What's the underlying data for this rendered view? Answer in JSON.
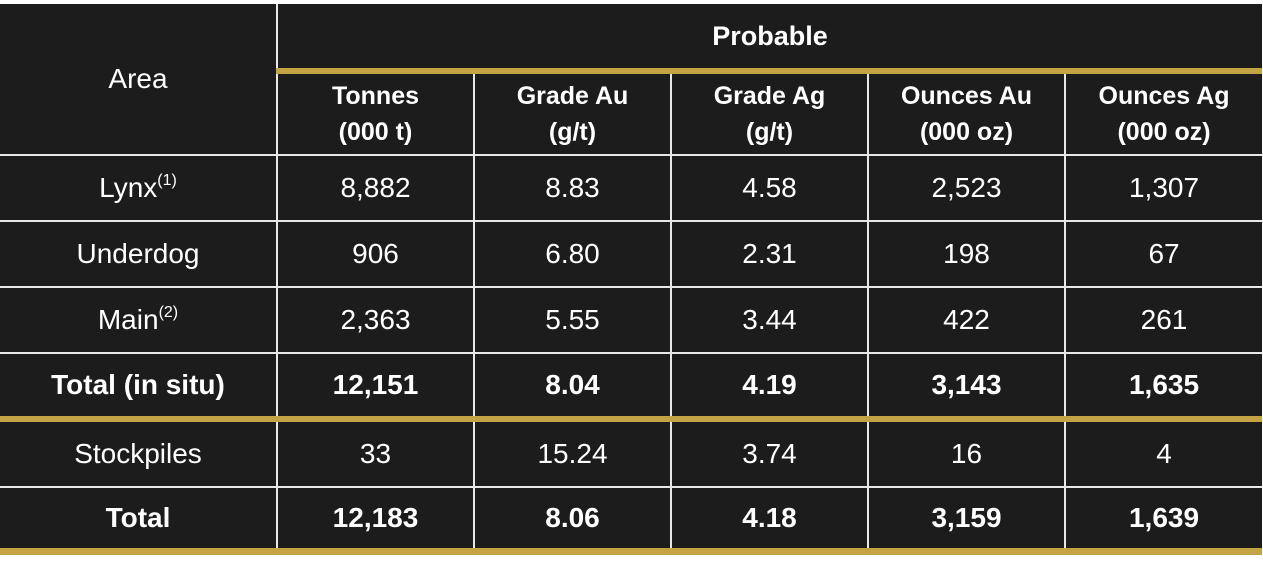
{
  "table": {
    "area_header": "Area",
    "group_header": "Probable",
    "columns": [
      {
        "line1": "Tonnes",
        "line2": "(000 t)"
      },
      {
        "line1": "Grade Au",
        "line2": "(g/t)"
      },
      {
        "line1": "Grade Ag",
        "line2": "(g/t)"
      },
      {
        "line1": "Ounces Au",
        "line2": "(000 oz)"
      },
      {
        "line1": "Ounces Ag",
        "line2": "(000 oz)"
      }
    ],
    "rows": [
      {
        "area": "Lynx",
        "note": "(1)",
        "values": [
          "8,882",
          "8.83",
          "4.58",
          "2,523",
          "1,307"
        ]
      },
      {
        "area": "Underdog",
        "note": "",
        "values": [
          "906",
          "6.80",
          "2.31",
          "198",
          "67"
        ]
      },
      {
        "area": "Main",
        "note": "(2)",
        "values": [
          "2,363",
          "5.55",
          "3.44",
          "422",
          "261"
        ]
      },
      {
        "area": "Total (in situ)",
        "note": "",
        "values": [
          "12,151",
          "8.04",
          "4.19",
          "3,143",
          "1,635"
        ]
      },
      {
        "area": "Stockpiles",
        "note": "",
        "values": [
          "33",
          "15.24",
          "3.74",
          "16",
          "4"
        ]
      },
      {
        "area": "Total",
        "note": "",
        "values": [
          "12,183",
          "8.06",
          "4.18",
          "3,159",
          "1,639"
        ]
      }
    ]
  },
  "colors": {
    "background": "#1c1c1c",
    "gold_rule": "#c3a344",
    "grid": "#e8e8e8",
    "text": "#ffffff"
  }
}
